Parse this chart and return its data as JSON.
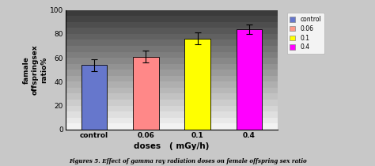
{
  "categories": [
    "control",
    "0.06",
    "0.1",
    "0.4"
  ],
  "values": [
    54,
    61,
    76,
    84
  ],
  "errors": [
    5,
    5,
    5,
    4
  ],
  "bar_colors": [
    "#6677CC",
    "#FF8888",
    "#FFFF00",
    "#FF00FF"
  ],
  "legend_labels": [
    "control",
    "0.06",
    "0.1",
    "0.4"
  ],
  "legend_colors": [
    "#6677CC",
    "#FF9988",
    "#FFFF00",
    "#FF00FF"
  ],
  "ylabel": "famale\noffspringsex\nratio%",
  "xlabel": "doses   ( mGy/h)",
  "ylim": [
    0,
    100
  ],
  "yticks": [
    0,
    20,
    40,
    60,
    80,
    100
  ],
  "caption": "Figures 5. Effect of gamma ray radiation doses on female offspring sex ratio",
  "n_stripes": 20,
  "bar_width": 0.5,
  "fig_width": 4.74,
  "fig_height": 2.1,
  "dpi": 100,
  "outer_bg": "#c8c8c8",
  "frame_bg": "#d8d8d8"
}
